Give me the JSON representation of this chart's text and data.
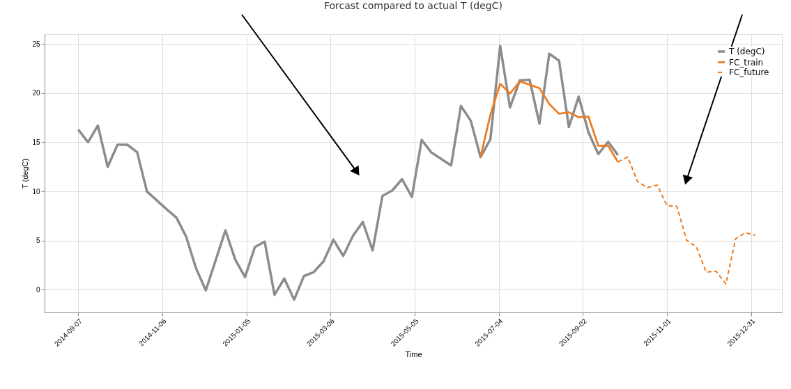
{
  "chart_data": {
    "type": "line",
    "title": "Forcast compared to actual T (degC)",
    "xlabel": "Time",
    "ylabel": "T (degC)",
    "xlim": [
      "2014-08-14",
      "2016-01-22"
    ],
    "xticks": [
      "2014-09-07",
      "2014-11-06",
      "2015-01-05",
      "2015-03-06",
      "2015-05-05",
      "2015-07-04",
      "2015-09-02",
      "2015-11-01",
      "2015-12-31"
    ],
    "ylim": [
      -2.3,
      26
    ],
    "yticks": [
      0,
      5,
      10,
      15,
      20,
      25
    ],
    "grid": true,
    "legend": "top right",
    "series": [
      {
        "name": "T (degC)",
        "color": "#8c8c8c",
        "line_style": "solid",
        "x": [
          "2014-09-07",
          "2014-09-14",
          "2014-09-21",
          "2014-09-28",
          "2014-10-05",
          "2014-10-12",
          "2014-10-19",
          "2014-10-26",
          "2014-11-02",
          "2014-11-09",
          "2014-11-16",
          "2014-11-23",
          "2014-11-30",
          "2014-12-07",
          "2014-12-14",
          "2014-12-21",
          "2014-12-28",
          "2015-01-04",
          "2015-01-11",
          "2015-01-18",
          "2015-01-25",
          "2015-02-01",
          "2015-02-08",
          "2015-02-15",
          "2015-02-22",
          "2015-03-01",
          "2015-03-08",
          "2015-03-15",
          "2015-03-22",
          "2015-03-29",
          "2015-04-05",
          "2015-04-12",
          "2015-04-19",
          "2015-04-26",
          "2015-05-03",
          "2015-05-10",
          "2015-05-17",
          "2015-05-24",
          "2015-05-31",
          "2015-06-07",
          "2015-06-14",
          "2015-06-21",
          "2015-06-28",
          "2015-07-05",
          "2015-07-12",
          "2015-07-19",
          "2015-07-26",
          "2015-08-02",
          "2015-08-09",
          "2015-08-16",
          "2015-08-23",
          "2015-08-30",
          "2015-09-06",
          "2015-09-13",
          "2015-09-20",
          "2015-09-27"
        ],
        "values": [
          16.3,
          15.0,
          16.7,
          12.5,
          14.75,
          14.75,
          14.0,
          10.0,
          9.1,
          8.2,
          7.35,
          5.4,
          2.2,
          -0.05,
          3.0,
          6.05,
          3.07,
          1.3,
          4.35,
          4.9,
          -0.5,
          1.15,
          -1.0,
          1.4,
          1.8,
          2.9,
          5.1,
          3.45,
          5.5,
          6.9,
          4.0,
          9.55,
          10.1,
          11.25,
          9.45,
          15.25,
          13.95,
          13.3,
          12.65,
          18.7,
          17.2,
          13.5,
          15.3,
          24.8,
          18.55,
          21.3,
          21.35,
          16.9,
          24.0,
          23.3,
          16.55,
          19.65,
          16.0,
          13.8,
          15.05,
          13.7
        ]
      },
      {
        "name": "FC_train",
        "color": "#ee7a1e",
        "line_style": "solid",
        "x": [
          "2015-06-21",
          "2015-06-28",
          "2015-07-05",
          "2015-07-12",
          "2015-07-19",
          "2015-07-26",
          "2015-08-02",
          "2015-08-09",
          "2015-08-16",
          "2015-08-23",
          "2015-08-30",
          "2015-09-06",
          "2015-09-13",
          "2015-09-20",
          "2015-09-27"
        ],
        "values": [
          13.5,
          17.8,
          20.95,
          19.95,
          21.2,
          20.85,
          20.5,
          18.9,
          17.9,
          18.05,
          17.55,
          17.6,
          14.65,
          14.65,
          13.0
        ]
      },
      {
        "name": "FC_future",
        "color": "#ee7a1e",
        "line_style": "dashed",
        "x": [
          "2015-09-27",
          "2015-10-04",
          "2015-10-11",
          "2015-10-18",
          "2015-10-25",
          "2015-11-01",
          "2015-11-08",
          "2015-11-15",
          "2015-11-22",
          "2015-11-29",
          "2015-12-06",
          "2015-12-13",
          "2015-12-20",
          "2015-12-27",
          "2016-01-03"
        ],
        "values": [
          13.0,
          13.5,
          11.0,
          10.4,
          10.65,
          8.55,
          8.5,
          5.05,
          4.35,
          1.8,
          1.9,
          0.6,
          5.2,
          5.8,
          5.55
        ]
      }
    ]
  }
}
